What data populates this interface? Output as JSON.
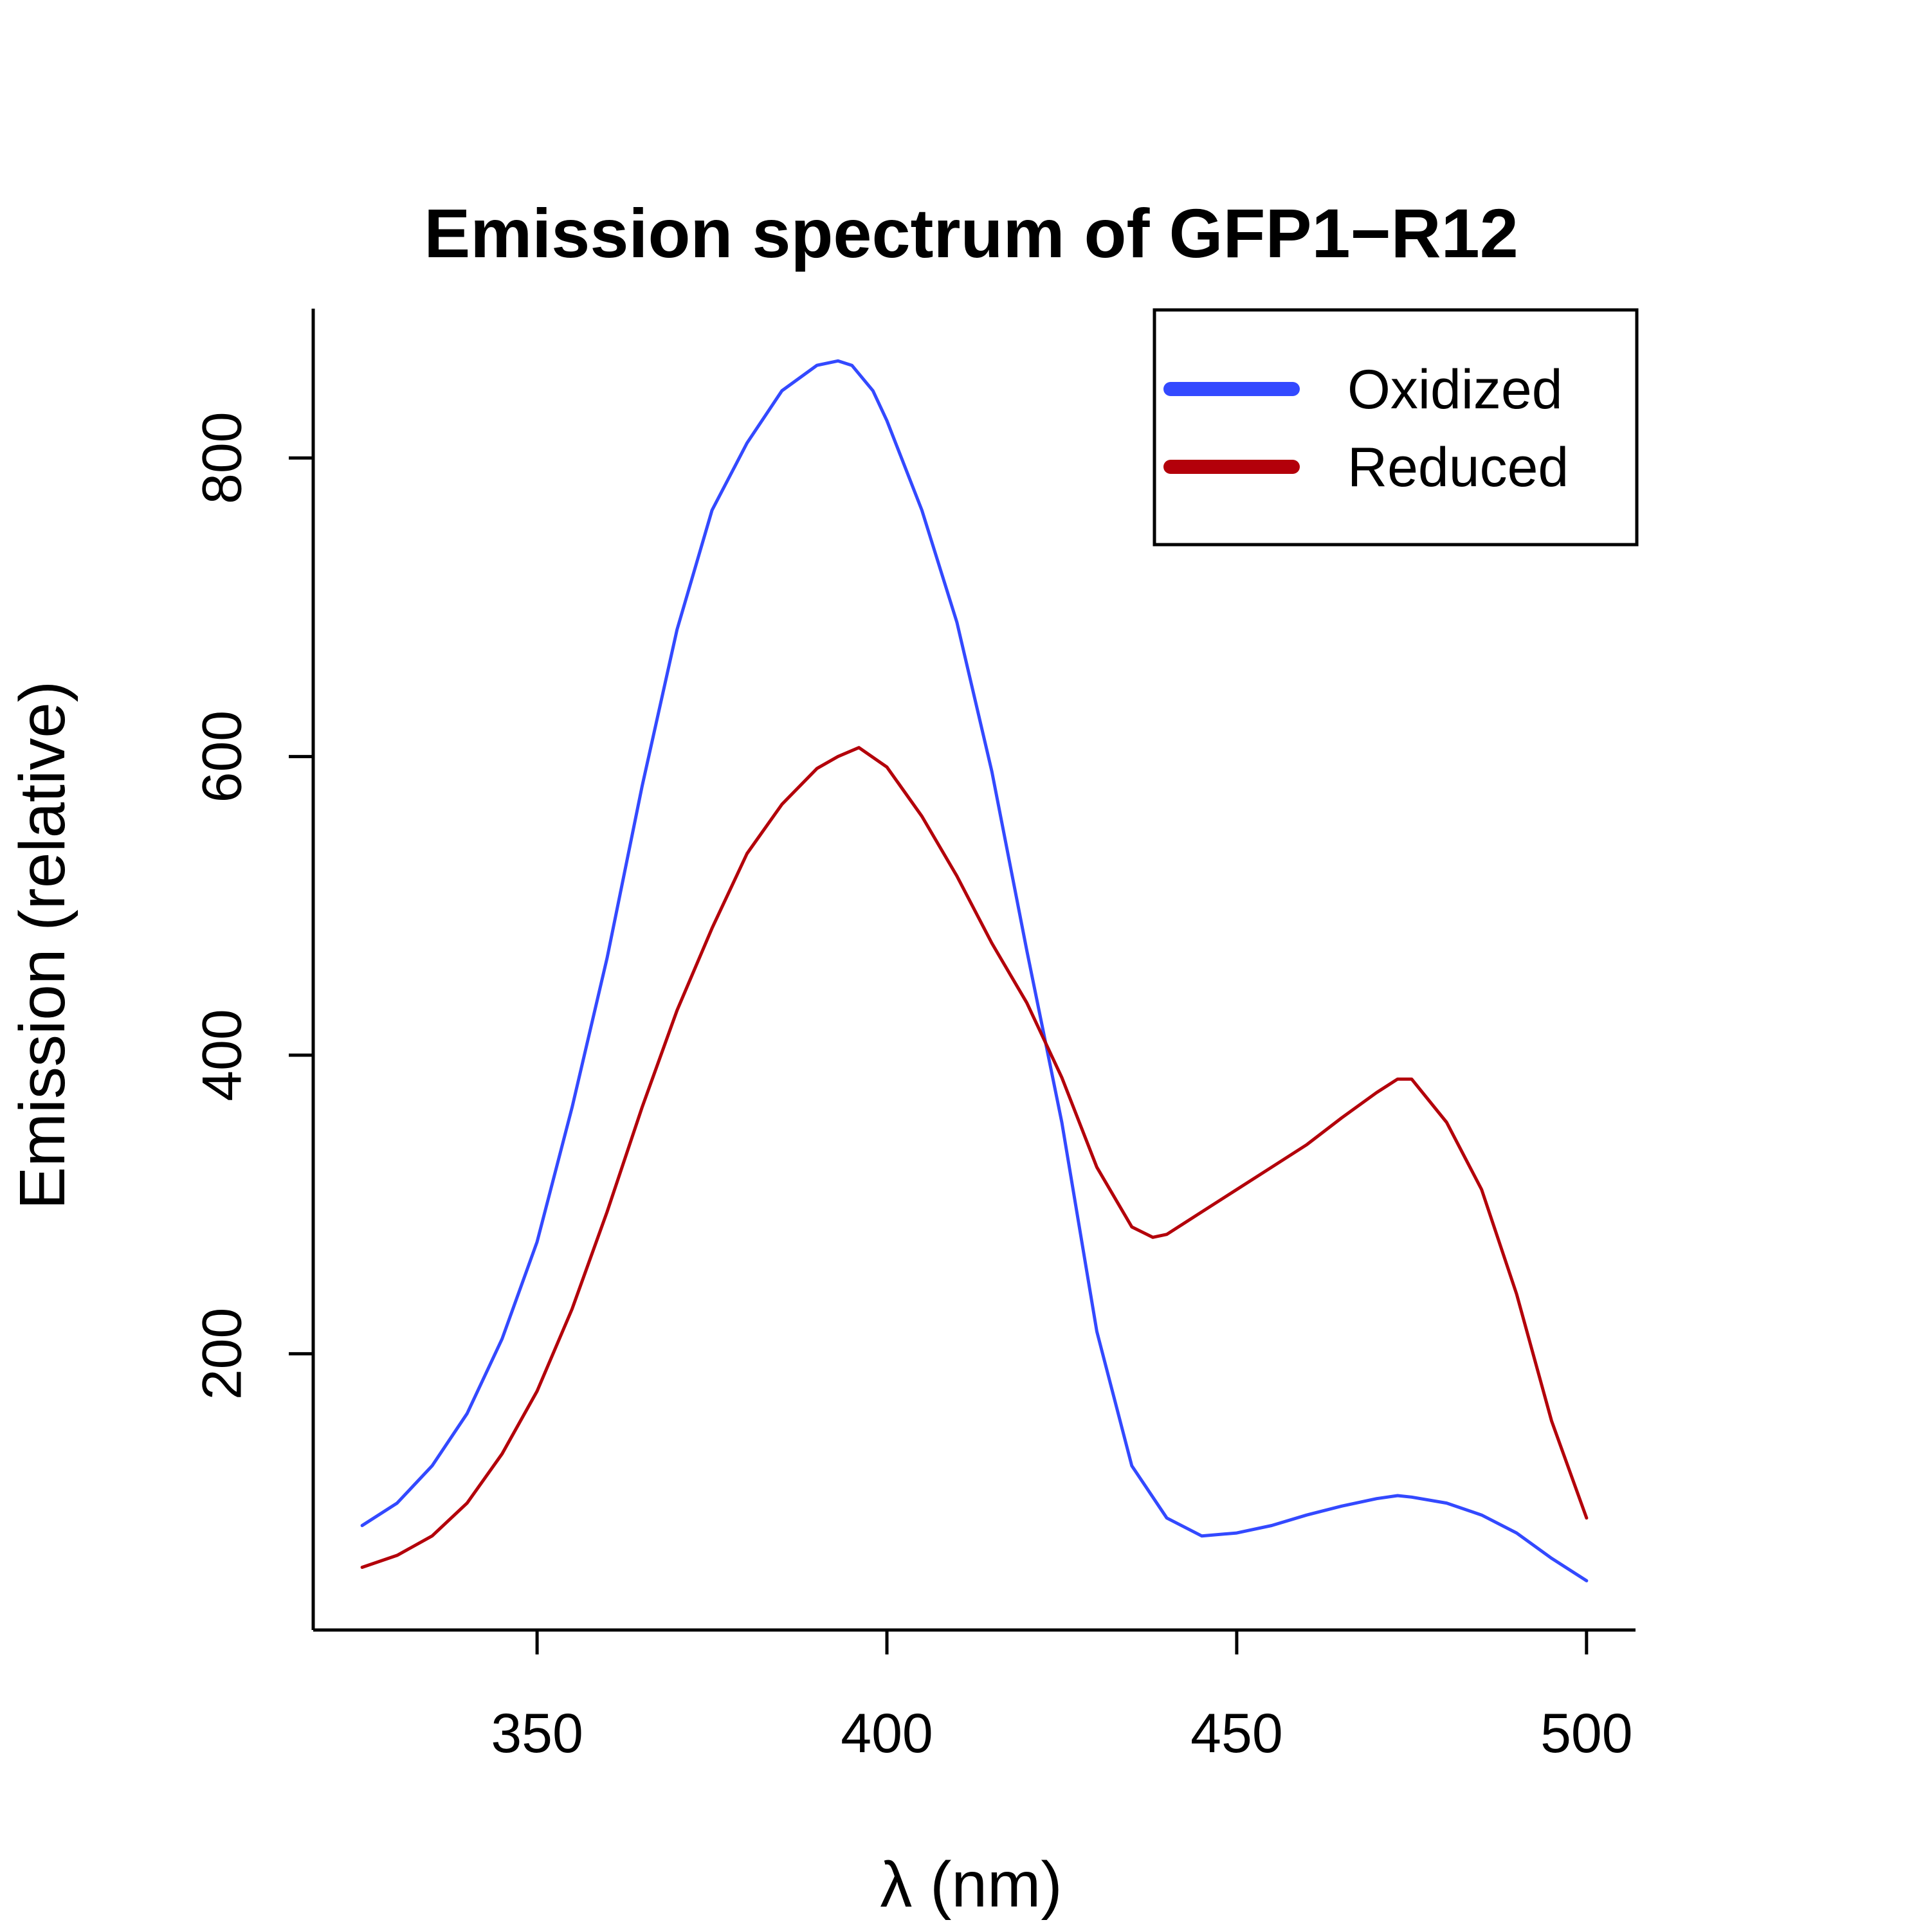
{
  "colors": {
    "oxidized": "#3349ff",
    "reduced": "#b3000a",
    "axis": "#000000",
    "background": "#ffffff"
  },
  "chart_data": {
    "type": "line",
    "title": "Emission spectrum of GFP1−R12",
    "xlabel": "λ (nm)",
    "ylabel": "Emission (relative)",
    "xlim": [
      318,
      507
    ],
    "ylim": [
      15,
      900
    ],
    "xticks": [
      350,
      400,
      450,
      500
    ],
    "yticks": [
      200,
      400,
      600,
      800
    ],
    "grid": false,
    "legend_position": "top-right",
    "series": [
      {
        "name": "Oxidized",
        "color": "#3349ff",
        "x": [
          325,
          330,
          335,
          340,
          345,
          350,
          355,
          360,
          365,
          370,
          375,
          380,
          385,
          390,
          393,
          395,
          398,
          400,
          405,
          410,
          415,
          420,
          425,
          430,
          435,
          440,
          445,
          450,
          455,
          460,
          465,
          470,
          473,
          475,
          480,
          485,
          490,
          495,
          500
        ],
        "y": [
          85,
          100,
          125,
          160,
          210,
          275,
          365,
          465,
          580,
          685,
          765,
          810,
          845,
          862,
          865,
          862,
          845,
          825,
          765,
          690,
          590,
          470,
          355,
          215,
          125,
          90,
          78,
          80,
          85,
          92,
          98,
          103,
          105,
          104,
          100,
          92,
          80,
          63,
          48
        ]
      },
      {
        "name": "Reduced",
        "color": "#b3000a",
        "x": [
          325,
          330,
          335,
          340,
          345,
          350,
          355,
          360,
          365,
          370,
          375,
          380,
          385,
          390,
          393,
          396,
          400,
          405,
          410,
          415,
          420,
          425,
          430,
          435,
          438,
          440,
          445,
          450,
          455,
          460,
          465,
          470,
          473,
          475,
          480,
          485,
          490,
          495,
          500
        ],
        "y": [
          57,
          65,
          78,
          100,
          133,
          175,
          230,
          295,
          365,
          430,
          485,
          535,
          568,
          592,
          600,
          606,
          593,
          560,
          520,
          475,
          435,
          385,
          325,
          285,
          278,
          280,
          295,
          310,
          325,
          340,
          358,
          375,
          384,
          384,
          355,
          310,
          240,
          155,
          90
        ]
      }
    ]
  }
}
